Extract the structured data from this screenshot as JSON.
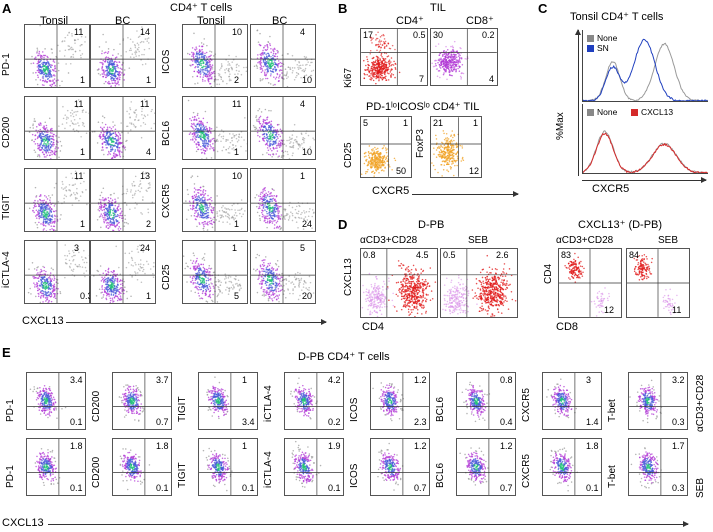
{
  "panelA": {
    "letter": "A",
    "title": "CD4⁺ T cells",
    "col_headers": [
      "Tonsil",
      "BC",
      "Tonsil",
      "BC"
    ],
    "x_label": "CXCL13",
    "rows_left": [
      {
        "marker": "PD-1",
        "tonsil_ur": "11",
        "tonsil_lr": "1",
        "bc_ur": "14",
        "bc_lr": "1"
      },
      {
        "marker": "CD200",
        "tonsil_ur": "11",
        "tonsil_lr": "1",
        "bc_ur": "11",
        "bc_lr": "4"
      },
      {
        "marker": "TIGIT",
        "tonsil_ur": "11",
        "tonsil_lr": "1",
        "bc_ur": "13",
        "bc_lr": "2"
      },
      {
        "marker": "iCTLA-4",
        "tonsil_ur": "3",
        "tonsil_lr": "0.3",
        "bc_ur": "24",
        "bc_lr": "1"
      }
    ],
    "rows_right": [
      {
        "marker": "ICOS",
        "tonsil_ur": "10",
        "tonsil_lr": "2",
        "bc_ur": "4",
        "bc_lr": "10"
      },
      {
        "marker": "BCL6",
        "tonsil_ur": "11",
        "tonsil_lr": "1",
        "bc_ur": "4",
        "bc_lr": "10"
      },
      {
        "marker": "CXCR5",
        "tonsil_ur": "10",
        "tonsil_lr": "1",
        "bc_ur": "1",
        "bc_lr": "24"
      },
      {
        "marker": "CD25",
        "tonsil_ur": "1",
        "tonsil_lr": "5",
        "bc_ur": "5",
        "bc_lr": "20"
      }
    ]
  },
  "panelB": {
    "letter": "B",
    "title": "TIL",
    "top_headers": [
      "CD4⁺",
      "CD8⁺"
    ],
    "top_ylabel": "Ki67",
    "cd4": {
      "ul": "17",
      "ur": "0.5",
      "lr": "7"
    },
    "cd8": {
      "ul": "30",
      "ur": "0.2",
      "lr": "4"
    },
    "sub_title": "PD-1ˡᵒICOSˡᵒ CD4⁺ TIL",
    "cd25_label": "CD25",
    "foxp3_label": "FoxP3",
    "cd25": {
      "ul": "5",
      "ur": "1",
      "lr": "50"
    },
    "foxp3": {
      "ul": "21",
      "ur": "1",
      "lr": "12"
    },
    "x_label": "CXCR5"
  },
  "panelC": {
    "letter": "C",
    "title": "Tonsil CD4⁺ T cells",
    "ylabel": "%Max",
    "xlabel": "CXCR5",
    "top_legend": [
      {
        "name": "None",
        "color": "#888888"
      },
      {
        "name": "SN",
        "color": "#1f3fbf"
      }
    ],
    "bottom_legend": [
      {
        "name": "None",
        "color": "#888888"
      },
      {
        "name": "CXCL13",
        "color": "#d42a2a"
      }
    ]
  },
  "panelD": {
    "letter": "D",
    "title_left": "D-PB",
    "title_right": "CXCL13⁺ (D-PB)",
    "left_headers": [
      "αCD3+CD28",
      "SEB"
    ],
    "right_headers": [
      "αCD3+CD28",
      "SEB"
    ],
    "left_ylabel": "CXCL13",
    "left_xlabel": "CD4",
    "right_ylabel": "CD4",
    "right_xlabel": "CD8",
    "left_nums": [
      {
        "ul": "0.8",
        "ur": "4.5"
      },
      {
        "ul": "0.5",
        "ur": "2.6"
      }
    ],
    "right_nums": [
      {
        "ul": "83",
        "lr": "12"
      },
      {
        "ul": "84",
        "lr": "11"
      }
    ]
  },
  "panelE": {
    "letter": "E",
    "title": "D-PB CD4⁺ T cells",
    "x_label": "CXCL13",
    "row_labels": [
      "αCD3+CD28",
      "SEB"
    ],
    "markers": [
      "PD-1",
      "CD200",
      "TIGIT",
      "iCTLA-4",
      "ICOS",
      "BCL6",
      "CXCR5",
      "T-bet"
    ],
    "row1": [
      {
        "ur": "3.4",
        "lr": "0.1"
      },
      {
        "ur": "3.7",
        "lr": "0.7"
      },
      {
        "ur": "1",
        "lr": "3.4"
      },
      {
        "ur": "4.2",
        "lr": "0.2"
      },
      {
        "ur": "1.2",
        "lr": "2.3"
      },
      {
        "ur": "0.8",
        "lr": "0.4"
      },
      {
        "ur": "3",
        "lr": "1.4"
      },
      {
        "ur": "3.2",
        "lr": "0.3"
      }
    ],
    "row2": [
      {
        "ur": "1.8",
        "lr": "0.1"
      },
      {
        "ur": "1.8",
        "lr": "0.1"
      },
      {
        "ur": "1",
        "lr": "0.1"
      },
      {
        "ur": "1.9",
        "lr": "0.1"
      },
      {
        "ur": "1.2",
        "lr": "0.7"
      },
      {
        "ur": "1.2",
        "lr": "0.7"
      },
      {
        "ur": "1.8",
        "lr": "0.1"
      },
      {
        "ur": "1.7",
        "lr": "0.3"
      }
    ]
  },
  "colors": {
    "flow_gray": "#9a9a9a",
    "flow_purple": "#b13ad6",
    "flow_blue": "#4a5ad8",
    "flow_green": "#21c07a",
    "flow_red": "#e01818",
    "flow_pink": "#d98ee8",
    "flow_orange": "#f0a020"
  }
}
